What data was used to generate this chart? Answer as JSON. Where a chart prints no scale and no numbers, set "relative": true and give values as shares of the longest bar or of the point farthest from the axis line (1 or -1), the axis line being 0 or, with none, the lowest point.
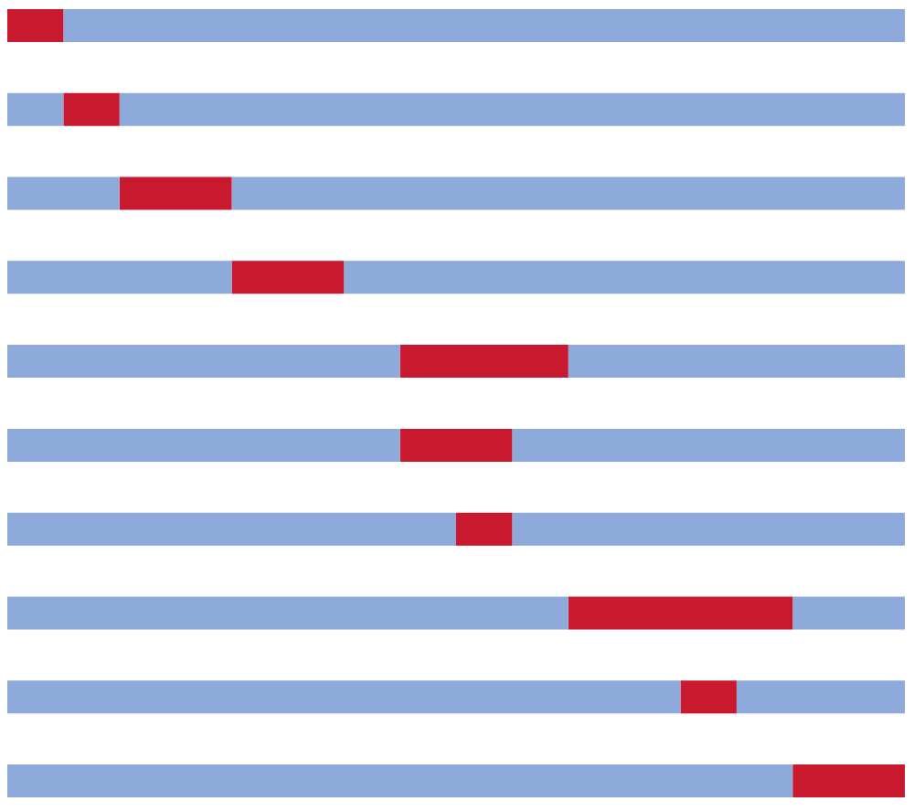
{
  "chart_data": {
    "type": "bar",
    "orientation": "horizontal",
    "stacked": true,
    "relative": true,
    "categories": [
      null,
      null,
      null,
      null,
      null,
      null,
      null,
      null,
      null,
      null
    ],
    "series": [
      {
        "color": "#8eaadb",
        "values": [
          0,
          0.0625,
          0.125,
          0.25,
          0.4375,
          0.4375,
          0.5,
          0.625,
          0.75,
          0.875
        ]
      },
      {
        "color": "#c8192e",
        "values": [
          0.0625,
          0.0625,
          0.125,
          0.125,
          0.1875,
          0.125,
          0.0625,
          0.25,
          0.0625,
          0.125
        ]
      },
      {
        "color": "#8eaadb",
        "values": [
          0.9375,
          0.875,
          0.75,
          0.625,
          0.375,
          0.4375,
          0.4375,
          0.125,
          0.1875,
          0
        ]
      }
    ]
  }
}
